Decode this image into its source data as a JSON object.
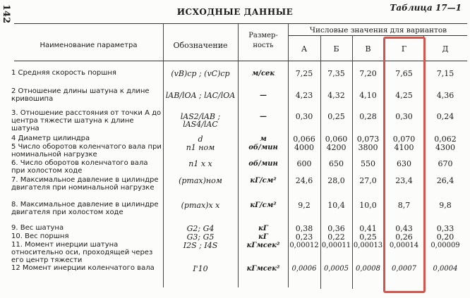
{
  "page_number": "142",
  "table_label": "Таблица 17—1",
  "title": "ИСХОДНЫЕ ДАННЫЕ",
  "headers": {
    "name": "Наименование параметра",
    "symbol": "Обозначение",
    "unit": "Размер-ность",
    "values_group": "Числовые значения для вариантов",
    "variants": [
      "А",
      "Б",
      "В",
      "Г",
      "Д"
    ]
  },
  "highlight_color": "#d2544a",
  "highlighted_variant": "Г",
  "rows": [
    {
      "name": "1 Средняя скорость поршня",
      "symbol": "(vB)ср ; (vC)ср",
      "unit": "м/сек",
      "values": [
        "7,25",
        "7,35",
        "7,20",
        "7,65",
        "7,15"
      ]
    },
    {
      "name": "2 Отношение длины шатуна к длине кривошипа",
      "symbol": "lAB/lOA ; lAC/lOA",
      "unit": "—",
      "values": [
        "4,23",
        "4,32",
        "4,10",
        "4,25",
        "4,36"
      ]
    },
    {
      "name": "3. Отношение расстояния от точки A до центра тяжести шатуна к длине шатуна",
      "symbol": "lAS2/lAB ; lAS4/lAC",
      "unit": "—",
      "values": [
        "0,30",
        "0,25",
        "0,28",
        "0,30",
        "0,24"
      ]
    },
    {
      "name": "4 Диаметр цилиндра",
      "symbol": "d",
      "unit": "м",
      "values": [
        "0,066",
        "0,060",
        "0,073",
        "0,070",
        "0,062"
      ]
    },
    {
      "name": "5 Число оборотов коленчатого вала при номинальной нагрузке",
      "symbol": "n1 ном",
      "unit": "об/мин",
      "values": [
        "4000",
        "4200",
        "3800",
        "4100",
        "4300"
      ]
    },
    {
      "name": "6. Число оборотов коленчатого вала при холостом ходе",
      "symbol": "n1 х х",
      "unit": "об/мин",
      "values": [
        "600",
        "650",
        "550",
        "630",
        "670"
      ]
    },
    {
      "name": "7. Максимальное давление в цилиндре двигателя при номинальной нагрузке",
      "symbol": "(pmax)ном",
      "unit": "кГ/см²",
      "values": [
        "24,6",
        "28,0",
        "27,0",
        "23,4",
        "26,4"
      ]
    },
    {
      "name": "8. Максимальное давление в цилиндре двигателя при холостом ходе",
      "symbol": "(pmax)х х",
      "unit": "кГ/см²",
      "values": [
        "9,2",
        "10,4",
        "10,0",
        "8,7",
        "9,8"
      ]
    },
    {
      "name": "9. Вес шатуна",
      "symbol": "G2; G4",
      "unit": "кГ",
      "values": [
        "0,38",
        "0,36",
        "0,41",
        "0,43",
        "0,33"
      ]
    },
    {
      "name": "10. Вес поршня",
      "symbol": "G3; G5",
      "unit": "кГ",
      "values": [
        "0,23",
        "0,22",
        "0,25",
        "0,26",
        "0,20"
      ]
    },
    {
      "name": "11. Момент инерции шатуна относительно оси, проходящей через его центр тяжести",
      "symbol": "I2S ; I4S",
      "unit": "кГмсек²",
      "values": [
        "0,00012",
        "0,00011",
        "0,00013",
        "0,00014",
        "0,00009"
      ]
    },
    {
      "name": "12 Момент инерции коленчатого вала",
      "symbol": "I'10",
      "unit": "кГмсек²",
      "values": [
        "0,0006",
        "0,0005",
        "0,0008",
        "0,0007",
        "0,0004"
      ]
    }
  ]
}
